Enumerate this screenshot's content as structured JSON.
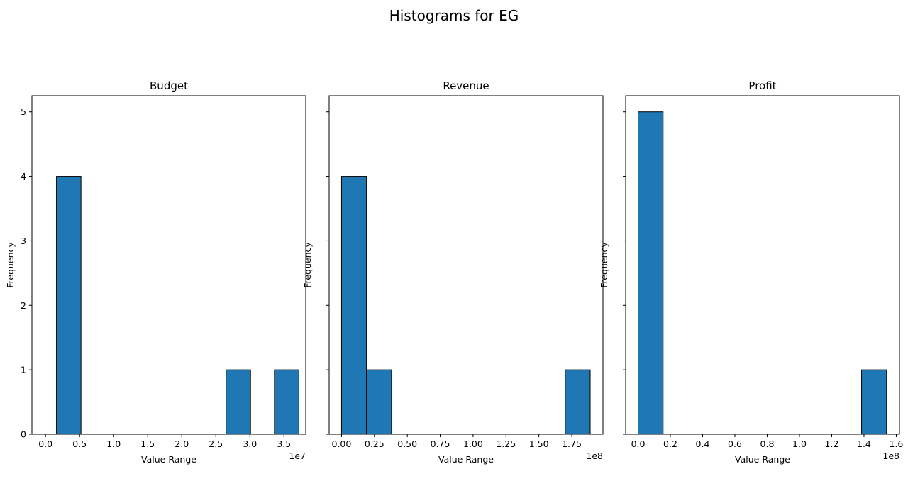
{
  "figure": {
    "suptitle": "Histograms for EG"
  },
  "colors": {
    "bar_fill": "#1f77b4",
    "bar_edge": "#000000"
  },
  "chart_data": [
    {
      "type": "bar",
      "title": "Budget",
      "xlabel": "Value Range",
      "ylabel": "Frequency",
      "offset_label": "1e7",
      "xlim": [
        -0.2,
        3.82
      ],
      "ylim": [
        0,
        5.25
      ],
      "xticks": [
        {
          "value": 0.0,
          "label": "0.0"
        },
        {
          "value": 0.5,
          "label": "0.5"
        },
        {
          "value": 1.0,
          "label": "1.0"
        },
        {
          "value": 1.5,
          "label": "1.5"
        },
        {
          "value": 2.0,
          "label": "2.0"
        },
        {
          "value": 2.5,
          "label": "2.5"
        },
        {
          "value": 3.0,
          "label": "3.0"
        },
        {
          "value": 3.5,
          "label": "3.5"
        }
      ],
      "yticks": [
        {
          "value": 0,
          "label": "0"
        },
        {
          "value": 1,
          "label": "1"
        },
        {
          "value": 2,
          "label": "2"
        },
        {
          "value": 3,
          "label": "3"
        },
        {
          "value": 4,
          "label": "4"
        },
        {
          "value": 5,
          "label": "5"
        }
      ],
      "bins": [
        {
          "start": 0.16,
          "end": 0.52,
          "count": 4
        },
        {
          "start": 2.65,
          "end": 3.01,
          "count": 1
        },
        {
          "start": 3.36,
          "end": 3.72,
          "count": 1
        }
      ]
    },
    {
      "type": "bar",
      "title": "Revenue",
      "xlabel": "Value Range",
      "ylabel": "Frequency",
      "offset_label": "1e8",
      "xlim": [
        -0.094,
        1.987
      ],
      "ylim": [
        0,
        5.25
      ],
      "xticks": [
        {
          "value": 0.0,
          "label": "0.00"
        },
        {
          "value": 0.25,
          "label": "0.25"
        },
        {
          "value": 0.5,
          "label": "0.50"
        },
        {
          "value": 0.75,
          "label": "0.75"
        },
        {
          "value": 1.0,
          "label": "1.00"
        },
        {
          "value": 1.25,
          "label": "1.25"
        },
        {
          "value": 1.5,
          "label": "1.50"
        },
        {
          "value": 1.75,
          "label": "1.75"
        }
      ],
      "yticks": [
        {
          "value": 0,
          "label": ""
        },
        {
          "value": 1,
          "label": ""
        },
        {
          "value": 2,
          "label": ""
        },
        {
          "value": 3,
          "label": ""
        },
        {
          "value": 4,
          "label": ""
        },
        {
          "value": 5,
          "label": ""
        }
      ],
      "bins": [
        {
          "start": 0.0,
          "end": 0.19,
          "count": 4
        },
        {
          "start": 0.19,
          "end": 0.38,
          "count": 1
        },
        {
          "start": 1.7,
          "end": 1.89,
          "count": 1
        }
      ]
    },
    {
      "type": "bar",
      "title": "Profit",
      "xlabel": "Value Range",
      "ylabel": "Frequency",
      "offset_label": "1e8",
      "xlim": [
        -0.077,
        1.62
      ],
      "ylim": [
        0,
        5.25
      ],
      "xticks": [
        {
          "value": 0.0,
          "label": "0.0"
        },
        {
          "value": 0.2,
          "label": "0.2"
        },
        {
          "value": 0.4,
          "label": "0.4"
        },
        {
          "value": 0.6,
          "label": "0.6"
        },
        {
          "value": 0.8,
          "label": "0.8"
        },
        {
          "value": 1.0,
          "label": "1.0"
        },
        {
          "value": 1.2,
          "label": "1.2"
        },
        {
          "value": 1.4,
          "label": "1.4"
        },
        {
          "value": 1.6,
          "label": "1.6"
        }
      ],
      "yticks": [
        {
          "value": 0,
          "label": ""
        },
        {
          "value": 1,
          "label": ""
        },
        {
          "value": 2,
          "label": ""
        },
        {
          "value": 3,
          "label": ""
        },
        {
          "value": 4,
          "label": ""
        },
        {
          "value": 5,
          "label": ""
        }
      ],
      "bins": [
        {
          "start": 0.0,
          "end": 0.155,
          "count": 5
        },
        {
          "start": 1.385,
          "end": 1.54,
          "count": 1
        }
      ]
    }
  ]
}
